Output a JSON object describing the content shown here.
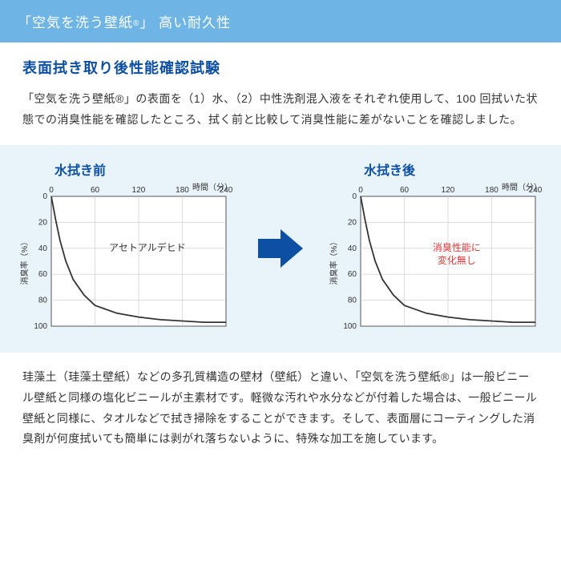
{
  "header": {
    "title_prefix": "「空気を洗う壁紙",
    "title_suffix": "」 高い耐久性",
    "reg": "®"
  },
  "section_title": "表面拭き取り後性能確認試験",
  "intro_text": "「空気を洗う壁紙®」の表面を（1）水、（2）中性洗剤混入液をそれぞれ使用して、100 回拭いた状態での消臭性能を確認したところ、拭く前と比較して消臭性能に差がないことを確認しました。",
  "chart_left": {
    "title": "水拭き前",
    "type": "line",
    "xlabel": "時間（分）",
    "ylabel": "消臭率（%）",
    "xlim": [
      0,
      240
    ],
    "ylim": [
      0,
      100
    ],
    "xticks": [
      0,
      60,
      120,
      180,
      240
    ],
    "yticks": [
      0,
      20,
      40,
      60,
      80,
      100
    ],
    "y_inverted": true,
    "line_color": "#333333",
    "line_width": 1.8,
    "grid_color": "#c8c8c8",
    "background_color": "#ffffff",
    "label_fontsize": 10,
    "points": [
      [
        0,
        0
      ],
      [
        6,
        18
      ],
      [
        12,
        34
      ],
      [
        20,
        50
      ],
      [
        30,
        64
      ],
      [
        45,
        76
      ],
      [
        60,
        84
      ],
      [
        90,
        90
      ],
      [
        120,
        93
      ],
      [
        150,
        95
      ],
      [
        180,
        96
      ],
      [
        210,
        97
      ],
      [
        240,
        97
      ]
    ],
    "annotation": "アセトアルデヒド",
    "annotation_color": "#333333"
  },
  "chart_right": {
    "title": "水拭き後",
    "type": "line",
    "xlabel": "時間（分）",
    "ylabel": "消臭率（%）",
    "xlim": [
      0,
      240
    ],
    "ylim": [
      0,
      100
    ],
    "xticks": [
      0,
      60,
      120,
      180,
      240
    ],
    "yticks": [
      0,
      20,
      40,
      60,
      80,
      100
    ],
    "y_inverted": true,
    "line_color": "#333333",
    "line_width": 1.8,
    "grid_color": "#c8c8c8",
    "background_color": "#ffffff",
    "label_fontsize": 10,
    "points": [
      [
        0,
        0
      ],
      [
        6,
        18
      ],
      [
        12,
        34
      ],
      [
        20,
        50
      ],
      [
        30,
        64
      ],
      [
        45,
        76
      ],
      [
        60,
        84
      ],
      [
        90,
        90
      ],
      [
        120,
        93
      ],
      [
        150,
        95
      ],
      [
        180,
        96
      ],
      [
        210,
        97
      ],
      [
        240,
        97
      ]
    ],
    "annotation": "消臭性能に\n変化無し",
    "annotation_color": "#e03a3a"
  },
  "arrow_color": "#0d4fa3",
  "bottom_text": "珪藻土（珪藻土壁紙）などの多孔質構造の壁材（壁紙）と違い、「空気を洗う壁紙®」は一般ビニール壁紙と同様の塩化ビニールが主素材です。軽微な汚れや水分などが付着した場合は、一般ビニール壁紙と同様に、タオルなどで拭き掃除をすることができます。そして、表面層にコーティングした消臭剤が何度拭いても簡単には剥がれ落ちないように、特殊な加工を施しています。"
}
